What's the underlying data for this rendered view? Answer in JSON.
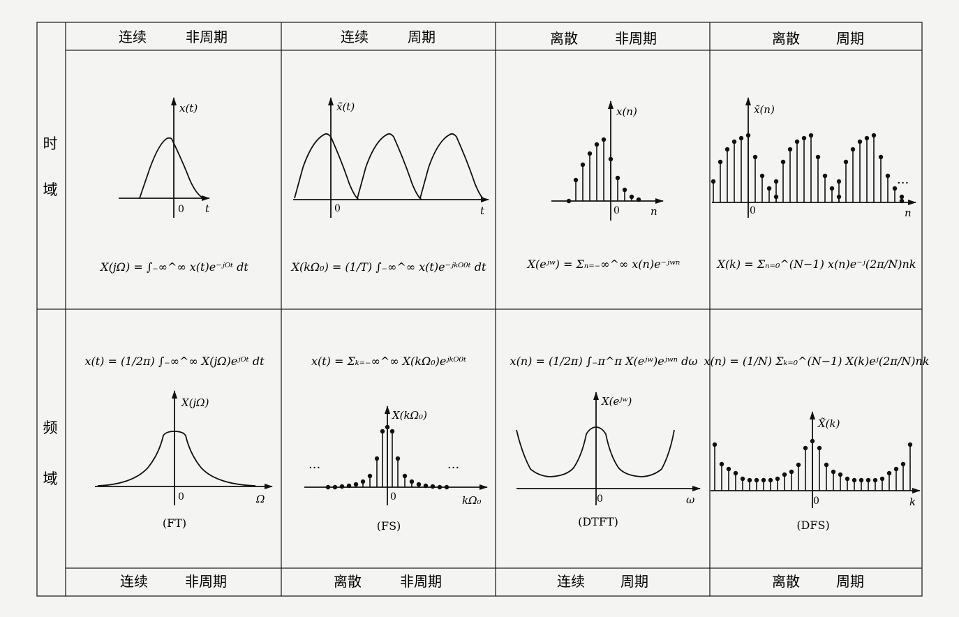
{
  "headers_top": [
    {
      "domain": "连续",
      "period": "非周期"
    },
    {
      "domain": "连续",
      "period": "周期"
    },
    {
      "domain": "离散",
      "period": "非周期"
    },
    {
      "domain": "离散",
      "period": "周期"
    }
  ],
  "headers_bottom": [
    {
      "domain": "连续",
      "period": "非周期"
    },
    {
      "domain": "离散",
      "period": "非周期"
    },
    {
      "domain": "连续",
      "period": "周期"
    },
    {
      "domain": "离散",
      "period": "周期"
    }
  ],
  "row_labels": {
    "time": [
      "时",
      "域"
    ],
    "freq": [
      "频",
      "域"
    ]
  },
  "time_plots": [
    {
      "ylabel": "x(t)",
      "xlabel": "t",
      "origin": "0"
    },
    {
      "ylabel": "x̃(t)",
      "xlabel": "t",
      "origin": "0"
    },
    {
      "ylabel": "x(n)",
      "xlabel": "n",
      "origin": "0"
    },
    {
      "ylabel": "x̃(n)",
      "xlabel": "n",
      "origin": "0",
      "ellipsis": "···"
    }
  ],
  "time_formulas": [
    "X(jΩ) = ∫₋∞^∞ x(t)e⁻ʲᴼᵗ dt",
    "X(kΩ₀) = (1/T) ∫₋∞^∞ x(t)e⁻ʲᵏᴼ⁰ᵗ dt",
    "X(eʲʷ) = Σₙ₌₋∞^∞ x(n)e⁻ʲʷⁿ",
    "X(k) = Σₙ₌₀^(N−1) x(n)e⁻ʲ(2π/N)nk"
  ],
  "freq_formulas": [
    "x(t) = (1/2π) ∫₋∞^∞ X(jΩ)eʲᴼᵗ dt",
    "x(t) = Σₖ₌₋∞^∞ X(kΩ₀)eʲᵏᴼ⁰ᵗ",
    "x(n) = (1/2π) ∫₋π^π X(eʲʷ)eʲʷⁿ dω",
    "x(n) = (1/N) Σₖ₌₀^(N−1) X(k)eʲ(2π/N)nk"
  ],
  "freq_plots": [
    {
      "ylabel": "X(jΩ)",
      "xlabel": "Ω",
      "origin": "0"
    },
    {
      "ylabel": "X(kΩ₀)",
      "xlabel": "kΩ₀",
      "origin": "0",
      "ellipsis": "···"
    },
    {
      "ylabel": "X(eʲʷ)",
      "xlabel": "ω",
      "origin": "0"
    },
    {
      "ylabel": "X̃(k)",
      "xlabel": "k",
      "origin": "0"
    }
  ],
  "captions": [
    "(FT)",
    "(FS)",
    "(DTFT)",
    "(DFS)"
  ]
}
